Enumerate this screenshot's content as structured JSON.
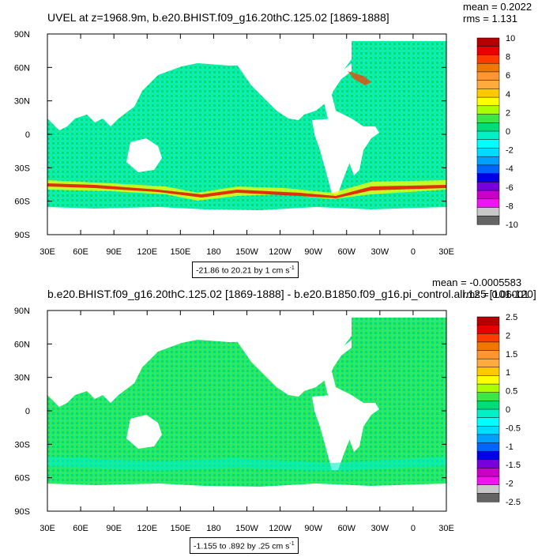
{
  "chart_data": [
    {
      "type": "heatmap",
      "title": "UVEL at z=1968.9m, b.e20.BHIST.f09_g16.20thC.125.02 [1869-1888]",
      "stats": {
        "mean": "mean = 0.2022",
        "rms": "rms = 1.131"
      },
      "x_ticks": [
        "30E",
        "60E",
        "90E",
        "120E",
        "150E",
        "180",
        "150W",
        "120W",
        "90W",
        "60W",
        "30W",
        "0",
        "30E"
      ],
      "y_ticks": [
        "90N",
        "60N",
        "30N",
        "0",
        "30S",
        "60S",
        "90S"
      ],
      "xlim": [
        30,
        390
      ],
      "ylim": [
        -90,
        90
      ],
      "range_label": "-21.86 to 20.21 by 1 cm s",
      "range_sup": "-1",
      "colorbar": {
        "labels": [
          "10",
          "8",
          "6",
          "4",
          "2",
          "0",
          "-2",
          "-4",
          "-6",
          "-8",
          "-10"
        ],
        "colors": [
          "#b40000",
          "#e60000",
          "#ff3c00",
          "#f07800",
          "#ff9632",
          "#ffaa3c",
          "#ffc800",
          "#ffff00",
          "#aaff00",
          "#3ce646",
          "#00dc78",
          "#00f0c8",
          "#00ffff",
          "#00dcff",
          "#00a0ff",
          "#0064ff",
          "#0000e6",
          "#7800dc",
          "#c800c8",
          "#f014f0",
          "#c8c8c8",
          "#646464"
        ]
      },
      "field_note": "zonal velocity; strong positive bands (yellow-red) along the Antarctic Circumpolar Current near 45S-60S and along the Gulf Stream; elsewhere near zero (cyan-green)"
    },
    {
      "type": "heatmap",
      "title": "b.e20.BHIST.f09_g16.20thC.125.02 [1869-1888] - b.e20.B1850.f09_g16.pi_control.all.125 [101-120]",
      "stats": {
        "mean": "mean = -0.0005583",
        "rms": "rms = 0.06001"
      },
      "x_ticks": [
        "30E",
        "60E",
        "90E",
        "120E",
        "150E",
        "180",
        "150W",
        "120W",
        "90W",
        "60W",
        "30W",
        "0",
        "30E"
      ],
      "y_ticks": [
        "90N",
        "60N",
        "30N",
        "0",
        "30S",
        "60S",
        "90S"
      ],
      "xlim": [
        30,
        390
      ],
      "ylim": [
        -90,
        90
      ],
      "range_label": "-1.155 to .892 by .25 cm s",
      "range_sup": "-1",
      "colorbar": {
        "labels": [
          "2.5",
          "2",
          "1.5",
          "1",
          "0.5",
          "0",
          "-0.5",
          "-1",
          "-1.5",
          "-2",
          "-2.5"
        ],
        "colors": [
          "#b40000",
          "#e60000",
          "#ff3c00",
          "#f07800",
          "#ff9632",
          "#ffaa3c",
          "#ffc800",
          "#ffff00",
          "#aaff00",
          "#3ce646",
          "#00dc78",
          "#00f0c8",
          "#00ffff",
          "#00dcff",
          "#00a0ff",
          "#0064ff",
          "#0000e6",
          "#7800dc",
          "#c800c8",
          "#f014f0",
          "#c8c8c8",
          "#646464"
        ]
      },
      "field_note": "difference field; mostly near zero (cyan-green) everywhere"
    }
  ]
}
